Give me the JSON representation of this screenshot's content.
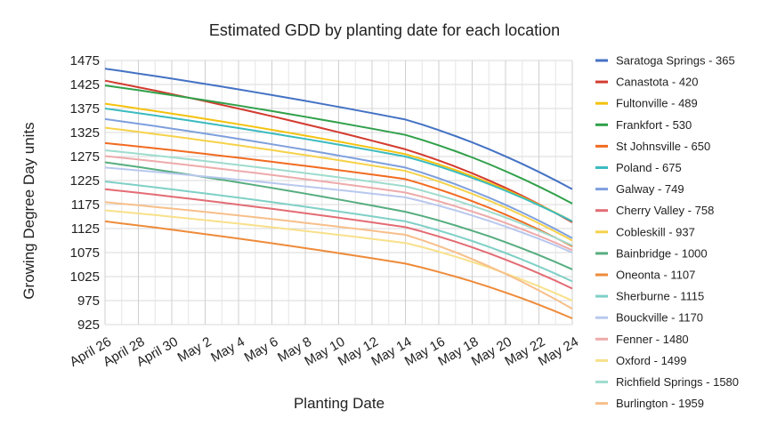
{
  "chart_data": {
    "type": "line",
    "title": "Estimated GDD by planting date for each location",
    "xlabel": "Planting Date",
    "ylabel": "Growing Degree Day units",
    "categories": [
      "April 26",
      "April 27",
      "April 28",
      "April 29",
      "April 30",
      "May 1",
      "May 2",
      "May 3",
      "May 4",
      "May 5",
      "May 6",
      "May 7",
      "May 8",
      "May 9",
      "May 10",
      "May 11",
      "May 12",
      "May 13",
      "May 14",
      "May 15",
      "May 16",
      "May 17",
      "May 18",
      "May 19",
      "May 20",
      "May 21",
      "May 22",
      "May 23",
      "May 24"
    ],
    "x_tick_labels": [
      "April 26",
      "April 28",
      "April 30",
      "May 2",
      "May 4",
      "May 6",
      "May 8",
      "May 10",
      "May 12",
      "May 14",
      "May 16",
      "May 18",
      "May 20",
      "May 22",
      "May 24"
    ],
    "ylim": [
      925,
      1475
    ],
    "y_ticks": [
      925,
      975,
      1025,
      1075,
      1125,
      1175,
      1225,
      1275,
      1325,
      1375,
      1425,
      1475
    ],
    "grid": true,
    "legend_position": "right",
    "series": [
      {
        "name": "Saratoga Springs - 365",
        "color": "#4472c4",
        "start": 1458,
        "mid": 1352,
        "end": 1207
      },
      {
        "name": "Canastota - 420",
        "color": "#d33b2f",
        "start": 1433,
        "mid": 1290,
        "end": 1138
      },
      {
        "name": "Fultonville - 489",
        "color": "#f4c20d",
        "start": 1385,
        "mid": 1280,
        "end": 1140
      },
      {
        "name": "Frankfort - 530",
        "color": "#30a04a",
        "start": 1423,
        "mid": 1320,
        "end": 1177
      },
      {
        "name": "St Johnsville - 650",
        "color": "#f26b21",
        "start": 1303,
        "mid": 1228,
        "end": 1088
      },
      {
        "name": "Poland - 675",
        "color": "#3bbbbf",
        "start": 1375,
        "mid": 1275,
        "end": 1140
      },
      {
        "name": "Galway - 749",
        "color": "#7e9fdd",
        "start": 1353,
        "mid": 1252,
        "end": 1105
      },
      {
        "name": "Cherry Valley - 758",
        "color": "#e36c74",
        "start": 1207,
        "mid": 1128,
        "end": 1000
      },
      {
        "name": "Cobleskill - 937",
        "color": "#f6d24a",
        "start": 1335,
        "mid": 1245,
        "end": 1100
      },
      {
        "name": "Bainbridge - 1000",
        "color": "#56ad7f",
        "start": 1263,
        "mid": 1160,
        "end": 1040
      },
      {
        "name": "Oneonta - 1107",
        "color": "#ee8b3a",
        "start": 1140,
        "mid": 1052,
        "end": 938
      },
      {
        "name": "Sherburne - 1115",
        "color": "#7fd0c6",
        "start": 1223,
        "mid": 1140,
        "end": 1015
      },
      {
        "name": "Bouckville - 1170",
        "color": "#b8c8ee",
        "start": 1252,
        "mid": 1190,
        "end": 1075
      },
      {
        "name": "Fenner - 1480",
        "color": "#eeaaaa",
        "start": 1276,
        "mid": 1200,
        "end": 1080
      },
      {
        "name": "Oxford - 1499",
        "color": "#f8e08a",
        "start": 1163,
        "mid": 1095,
        "end": 975
      },
      {
        "name": "Richfield Springs - 1580",
        "color": "#9fdccd",
        "start": 1288,
        "mid": 1213,
        "end": 1090
      },
      {
        "name": "Burlington - 1959",
        "color": "#f7bf8a",
        "start": 1180,
        "mid": 1112,
        "end": 958
      }
    ]
  }
}
